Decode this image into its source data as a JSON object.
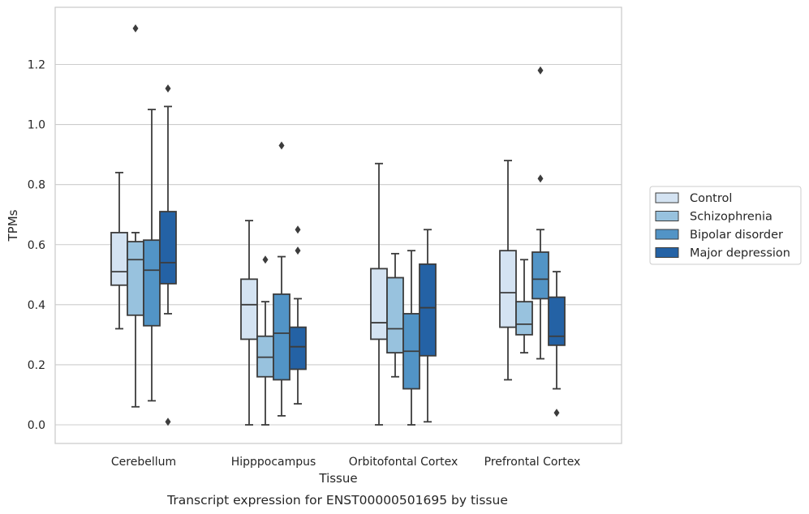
{
  "chart_data": {
    "type": "box",
    "caption": "Transcript expression for ENST00000501695 by tissue",
    "xlabel": "Tissue",
    "ylabel": "TPMs",
    "ylim": [
      -0.065,
      1.39
    ],
    "yticks": [
      0.0,
      0.2,
      0.4,
      0.6,
      0.8,
      1.0,
      1.2
    ],
    "ytick_labels": [
      "0.0",
      "0.2",
      "0.4",
      "0.6",
      "0.8",
      "1.0",
      "1.2"
    ],
    "grid": "horizontal",
    "legend_position": "right",
    "categories": [
      "Cerebellum",
      "Hipppocampus",
      "Orbitofontal Cortex",
      "Prefrontal Cortex"
    ],
    "series": [
      {
        "name": "Control",
        "color": "#d4e3f2",
        "boxes": [
          {
            "whislo": 0.32,
            "q1": 0.465,
            "med": 0.51,
            "q3": 0.64,
            "whishi": 0.84,
            "fliers": []
          },
          {
            "whislo": 0.0,
            "q1": 0.285,
            "med": 0.4,
            "q3": 0.485,
            "whishi": 0.68,
            "fliers": []
          },
          {
            "whislo": 0.0,
            "q1": 0.285,
            "med": 0.34,
            "q3": 0.52,
            "whishi": 0.87,
            "fliers": []
          },
          {
            "whislo": 0.15,
            "q1": 0.325,
            "med": 0.44,
            "q3": 0.58,
            "whishi": 0.88,
            "fliers": []
          }
        ]
      },
      {
        "name": "Schizophrenia",
        "color": "#98c2de",
        "boxes": [
          {
            "whislo": 0.06,
            "q1": 0.365,
            "med": 0.55,
            "q3": 0.61,
            "whishi": 0.64,
            "fliers": [
              1.32
            ]
          },
          {
            "whislo": 0.0,
            "q1": 0.16,
            "med": 0.225,
            "q3": 0.295,
            "whishi": 0.41,
            "fliers": [
              0.55
            ]
          },
          {
            "whislo": 0.16,
            "q1": 0.24,
            "med": 0.32,
            "q3": 0.49,
            "whishi": 0.57,
            "fliers": []
          },
          {
            "whislo": 0.24,
            "q1": 0.3,
            "med": 0.335,
            "q3": 0.41,
            "whishi": 0.55,
            "fliers": []
          }
        ]
      },
      {
        "name": "Bipolar disorder",
        "color": "#5294c6",
        "boxes": [
          {
            "whislo": 0.08,
            "q1": 0.33,
            "med": 0.515,
            "q3": 0.615,
            "whishi": 1.05,
            "fliers": []
          },
          {
            "whislo": 0.03,
            "q1": 0.15,
            "med": 0.305,
            "q3": 0.435,
            "whishi": 0.56,
            "fliers": [
              0.93
            ]
          },
          {
            "whislo": 0.0,
            "q1": 0.12,
            "med": 0.245,
            "q3": 0.37,
            "whishi": 0.58,
            "fliers": []
          },
          {
            "whislo": 0.22,
            "q1": 0.42,
            "med": 0.485,
            "q3": 0.575,
            "whishi": 0.65,
            "fliers": [
              1.18,
              0.82
            ]
          }
        ]
      },
      {
        "name": "Major depression",
        "color": "#2462a5",
        "boxes": [
          {
            "whislo": 0.37,
            "q1": 0.47,
            "med": 0.54,
            "q3": 0.71,
            "whishi": 1.06,
            "fliers": [
              1.12,
              0.01
            ]
          },
          {
            "whislo": 0.07,
            "q1": 0.185,
            "med": 0.26,
            "q3": 0.325,
            "whishi": 0.42,
            "fliers": [
              0.65,
              0.58
            ]
          },
          {
            "whislo": 0.01,
            "q1": 0.23,
            "med": 0.39,
            "q3": 0.535,
            "whishi": 0.65,
            "fliers": []
          },
          {
            "whislo": 0.12,
            "q1": 0.265,
            "med": 0.295,
            "q3": 0.425,
            "whishi": 0.51,
            "fliers": [
              0.04
            ]
          }
        ]
      }
    ]
  }
}
